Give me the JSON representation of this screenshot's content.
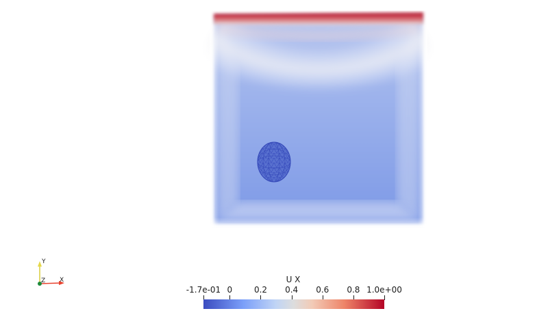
{
  "colorbar": {
    "title": "U X",
    "ticks": [
      {
        "label": "-1.7e-01",
        "value": -0.17
      },
      {
        "label": "0",
        "value": 0
      },
      {
        "label": "0.2",
        "value": 0.2
      },
      {
        "label": "0.4",
        "value": 0.4
      },
      {
        "label": "0.6",
        "value": 0.6
      },
      {
        "label": "0.8",
        "value": 0.8
      },
      {
        "label": "1.0e+00",
        "value": 1.0
      }
    ],
    "range": [
      -0.17,
      1.0
    ],
    "colors": {
      "low": "#3b4cc0",
      "mid": "#dddddd",
      "high": "#b40426"
    }
  },
  "orientation_axes": {
    "x_label": "X",
    "y_label": "Y",
    "z_label": "Z",
    "x_color": "#e8412e",
    "y_color": "#e6d84a",
    "z_color": "#1e8a3a"
  },
  "scene": {
    "background": "#ffffff",
    "volume_base_color": "#8aa6ea",
    "lid_color": "#c2283a",
    "sphere_color": "#3f56c4"
  }
}
